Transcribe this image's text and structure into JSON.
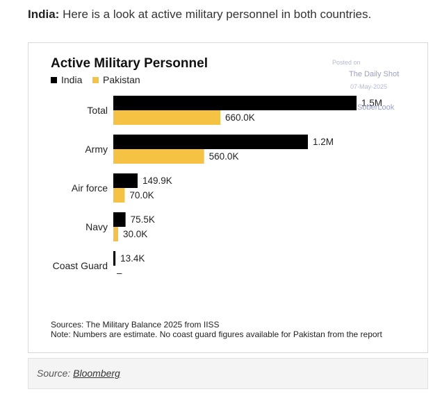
{
  "intro": {
    "lead": "India:",
    "text": " Here is a look at active military personnel in both countries."
  },
  "watermark": {
    "line1": "Posted on",
    "line2": "The Daily Shot",
    "line3": "07-May-2025",
    "line4": "SoberLook"
  },
  "caption": {
    "prefix": "Source: ",
    "link": "Bloomberg"
  },
  "chart_data": {
    "type": "bar",
    "orientation": "horizontal",
    "title": "Active Military Personnel",
    "categories": [
      "Total",
      "Army",
      "Air force",
      "Navy",
      "Coast Guard"
    ],
    "series": [
      {
        "name": "India",
        "color": "#000000",
        "values": [
          1500000,
          1200000,
          149900,
          75500,
          13400
        ],
        "labels": [
          "1.5M",
          "1.2M",
          "149.9K",
          "75.5K",
          "13.4K"
        ]
      },
      {
        "name": "Pakistan",
        "color": "#f6c244",
        "values": [
          660000,
          560000,
          70000,
          30000,
          null
        ],
        "labels": [
          "660.0K",
          "560.0K",
          "70.0K",
          "30.0K",
          "–"
        ]
      }
    ],
    "legend_position": "top-left",
    "grid": false,
    "xlim": [
      0,
      1500000
    ],
    "sources": [
      "Sources: The Military Balance 2025 from IISS",
      "Note: Numbers are estimate. No coast guard figures available for Pakistan from the report"
    ]
  }
}
